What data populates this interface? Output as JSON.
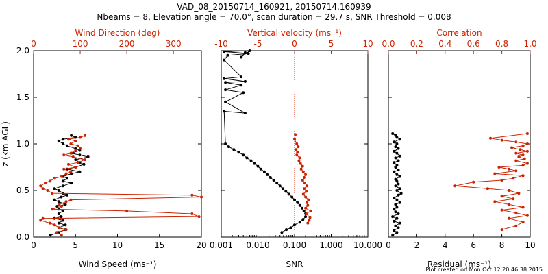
{
  "header": {
    "title_line1": "VAD_08_20150714_160921, 20150714.160939",
    "title_line2": "Nbeams = 8, Elevation angle = 70.0°, scan duration = 29.7 s, SNR Threshold = 0.008"
  },
  "footer": {
    "credit": "Plot created on Mon Oct 12 20:46:38 2015"
  },
  "colors": {
    "black": "#000000",
    "red": "#cc2200"
  },
  "chart_data": [
    {
      "type": "line",
      "name": "wind",
      "xlabel": "Wind Speed (ms⁻¹)",
      "top_xlabel": "Wind Direction (deg)",
      "ylabel": "z (km AGL)",
      "xlim": [
        0,
        20
      ],
      "top_xlim": [
        0,
        360
      ],
      "ylim": [
        0,
        2
      ],
      "xticks": [
        0,
        5,
        10,
        15,
        20
      ],
      "top_xticks": [
        0,
        100,
        200,
        300
      ],
      "yticks": [
        0.0,
        0.5,
        1.0,
        1.5,
        2.0
      ],
      "ytick_labels": [
        "0.0",
        "0.5",
        "1.0",
        "1.5",
        "2.0"
      ],
      "series": [
        {
          "name": "Wind Speed",
          "color": "#000000",
          "axis": "bottom",
          "x": [
            2.0,
            3.0,
            3.8,
            3.0,
            3.8,
            3.0,
            3.5,
            2.5,
            3.3,
            3.0,
            3.5,
            3.0,
            2.8,
            3.8,
            3.0,
            2.5,
            3.3,
            4.0,
            3.5,
            3.0,
            2.5,
            3.5,
            4.5,
            3.5,
            4.0,
            3.5,
            4.5,
            5.5,
            4.0,
            5.0,
            6.0,
            5.5,
            5.0,
            6.5,
            5.5,
            4.5,
            5.5,
            5.0,
            4.0,
            3.5,
            3.0,
            3.5,
            5.0,
            4.5
          ],
          "y": [
            0.02,
            0.05,
            0.08,
            0.1,
            0.13,
            0.15,
            0.18,
            0.2,
            0.22,
            0.25,
            0.28,
            0.3,
            0.33,
            0.35,
            0.38,
            0.4,
            0.43,
            0.45,
            0.47,
            0.5,
            0.52,
            0.55,
            0.58,
            0.6,
            0.63,
            0.65,
            0.68,
            0.7,
            0.73,
            0.75,
            0.78,
            0.8,
            0.83,
            0.86,
            0.88,
            0.9,
            0.93,
            0.95,
            0.98,
            1.0,
            1.03,
            1.05,
            1.07,
            1.09
          ]
        },
        {
          "name": "Wind Direction",
          "color": "#cc2200",
          "axis": "top",
          "x": [
            60,
            50,
            70,
            55,
            45,
            35,
            15,
            20,
            355,
            340,
            200,
            40,
            60,
            55,
            70,
            80,
            360,
            340,
            40,
            30,
            20,
            15,
            25,
            35,
            45,
            60,
            70,
            80,
            65,
            90,
            75,
            95,
            110,
            85,
            65,
            80,
            90,
            100,
            95,
            80,
            90,
            75,
            100,
            110
          ],
          "y": [
            0.02,
            0.05,
            0.08,
            0.1,
            0.13,
            0.15,
            0.18,
            0.2,
            0.22,
            0.25,
            0.28,
            0.3,
            0.33,
            0.35,
            0.38,
            0.4,
            0.43,
            0.45,
            0.47,
            0.5,
            0.52,
            0.55,
            0.58,
            0.6,
            0.63,
            0.65,
            0.68,
            0.7,
            0.73,
            0.75,
            0.78,
            0.8,
            0.83,
            0.86,
            0.88,
            0.9,
            0.93,
            0.95,
            0.98,
            1.0,
            1.03,
            1.05,
            1.07,
            1.09
          ]
        }
      ]
    },
    {
      "type": "line",
      "name": "snr-vertical-velocity",
      "xlabel": "SNR",
      "top_xlabel": "Vertical velocity (ms⁻¹)",
      "xscale": "log",
      "xlim": [
        0.001,
        10
      ],
      "top_xlim": [
        -10,
        10
      ],
      "ylim": [
        0,
        2
      ],
      "xticks": [
        0.001,
        0.01,
        0.1,
        1,
        10
      ],
      "xtick_labels": [
        "0.001",
        "0.010",
        "0.100",
        "1.000",
        "10.000"
      ],
      "top_xticks": [
        -10,
        -5,
        0,
        5,
        10
      ],
      "reference_line": {
        "axis": "top",
        "x": 0,
        "style": "dotted",
        "color": "#cc2200"
      },
      "series": [
        {
          "name": "SNR",
          "color": "#000000",
          "axis": "bottom",
          "x": [
            0.045,
            0.06,
            0.08,
            0.1,
            0.14,
            0.17,
            0.2,
            0.2,
            0.18,
            0.16,
            0.14,
            0.12,
            0.1,
            0.085,
            0.07,
            0.058,
            0.048,
            0.04,
            0.033,
            0.027,
            0.022,
            0.018,
            0.015,
            0.012,
            0.01,
            0.008,
            0.0065,
            0.005,
            0.004,
            0.003,
            0.0022,
            0.0016,
            0.0013,
            0.0012,
            0.0045,
            0.0013,
            0.004,
            0.0013,
            0.0035,
            0.0013,
            0.0045,
            0.0012,
            0.0035,
            0.0012,
            0.0015,
            0.0055,
            0.0012,
            0.006,
            0.0035,
            0.0045
          ],
          "y": [
            0.05,
            0.08,
            0.1,
            0.13,
            0.16,
            0.19,
            0.22,
            0.25,
            0.28,
            0.31,
            0.34,
            0.37,
            0.4,
            0.43,
            0.46,
            0.49,
            0.52,
            0.55,
            0.58,
            0.61,
            0.64,
            0.67,
            0.7,
            0.73,
            0.76,
            0.79,
            0.82,
            0.85,
            0.88,
            0.91,
            0.94,
            0.97,
            1.0,
            1.35,
            1.33,
            1.45,
            1.55,
            1.58,
            1.63,
            1.66,
            1.67,
            1.7,
            1.72,
            1.9,
            1.95,
            1.97,
            1.99,
            2.0,
            1.93,
            1.98
          ]
        },
        {
          "name": "Vertical velocity",
          "color": "#cc2200",
          "axis": "top",
          "x": [
            1.8,
            2.0,
            2.1,
            1.6,
            2.2,
            1.5,
            1.8,
            1.7,
            1.9,
            1.5,
            1.2,
            1.6,
            1.3,
            1.7,
            1.4,
            1.1,
            1.3,
            1.5,
            1.2,
            0.9,
            1.1,
            0.8,
            0.6,
            0.7,
            0.3,
            0.4,
            0.2,
            0.5,
            0.3,
            0.0,
            0.1
          ],
          "y": [
            0.15,
            0.18,
            0.21,
            0.25,
            0.28,
            0.31,
            0.34,
            0.37,
            0.4,
            0.43,
            0.46,
            0.49,
            0.52,
            0.55,
            0.58,
            0.61,
            0.64,
            0.67,
            0.7,
            0.73,
            0.76,
            0.79,
            0.82,
            0.85,
            0.88,
            0.91,
            0.94,
            0.97,
            1.0,
            1.05,
            1.1
          ]
        }
      ]
    },
    {
      "type": "line",
      "name": "residual-correlation",
      "xlabel": "Residual (ms⁻¹)",
      "top_xlabel": "Correlation",
      "xlim": [
        0,
        10
      ],
      "top_xlim": [
        0.0,
        1.0
      ],
      "ylim": [
        0,
        2
      ],
      "xticks": [
        0,
        2,
        4,
        6,
        8,
        10
      ],
      "top_xticks": [
        0.0,
        0.2,
        0.4,
        0.6,
        0.8,
        1.0
      ],
      "top_xtick_labels": [
        "0.0",
        "0.2",
        "0.4",
        "0.6",
        "0.8",
        "1.0"
      ],
      "series": [
        {
          "name": "Residual",
          "color": "#000000",
          "axis": "bottom",
          "x": [
            0.3,
            0.6,
            0.4,
            0.7,
            0.5,
            0.8,
            0.4,
            0.6,
            0.3,
            0.7,
            0.5,
            0.4,
            0.6,
            0.5,
            0.8,
            0.6,
            0.4,
            0.7,
            0.9,
            0.6,
            0.8,
            0.5,
            0.7,
            0.6,
            0.5,
            0.8,
            0.6,
            0.4,
            0.7,
            0.5,
            0.6,
            0.4,
            0.7,
            0.5,
            0.8,
            0.6,
            0.4,
            0.7,
            0.5,
            0.6,
            0.4,
            0.8,
            0.6,
            0.5,
            0.3
          ],
          "y": [
            0.02,
            0.05,
            0.07,
            0.1,
            0.12,
            0.15,
            0.17,
            0.2,
            0.22,
            0.25,
            0.27,
            0.3,
            0.32,
            0.35,
            0.37,
            0.4,
            0.42,
            0.45,
            0.47,
            0.5,
            0.52,
            0.55,
            0.57,
            0.6,
            0.62,
            0.65,
            0.67,
            0.7,
            0.72,
            0.75,
            0.77,
            0.8,
            0.82,
            0.85,
            0.87,
            0.9,
            0.92,
            0.95,
            0.97,
            1.0,
            1.02,
            1.05,
            1.07,
            1.09,
            1.11
          ]
        },
        {
          "name": "Correlation",
          "color": "#cc2200",
          "axis": "top",
          "x": [
            0.8,
            0.9,
            0.95,
            0.85,
            0.98,
            0.9,
            0.8,
            0.95,
            0.85,
            0.75,
            0.88,
            0.8,
            0.92,
            0.85,
            0.7,
            0.47,
            0.6,
            0.8,
            0.88,
            0.95,
            0.75,
            0.9,
            0.85,
            0.78,
            0.95,
            0.98,
            0.9,
            0.96,
            0.92,
            0.95,
            0.9,
            0.98,
            0.93,
            0.87,
            0.95,
            0.98,
            0.9,
            0.8,
            0.72,
            0.98
          ],
          "y": [
            0.08,
            0.12,
            0.16,
            0.2,
            0.23,
            0.26,
            0.29,
            0.32,
            0.35,
            0.38,
            0.41,
            0.44,
            0.47,
            0.5,
            0.52,
            0.55,
            0.59,
            0.61,
            0.63,
            0.66,
            0.68,
            0.71,
            0.73,
            0.75,
            0.77,
            0.79,
            0.82,
            0.84,
            0.86,
            0.88,
            0.9,
            0.92,
            0.94,
            0.96,
            0.98,
            1.0,
            1.02,
            1.04,
            1.06,
            1.11
          ]
        }
      ]
    }
  ]
}
